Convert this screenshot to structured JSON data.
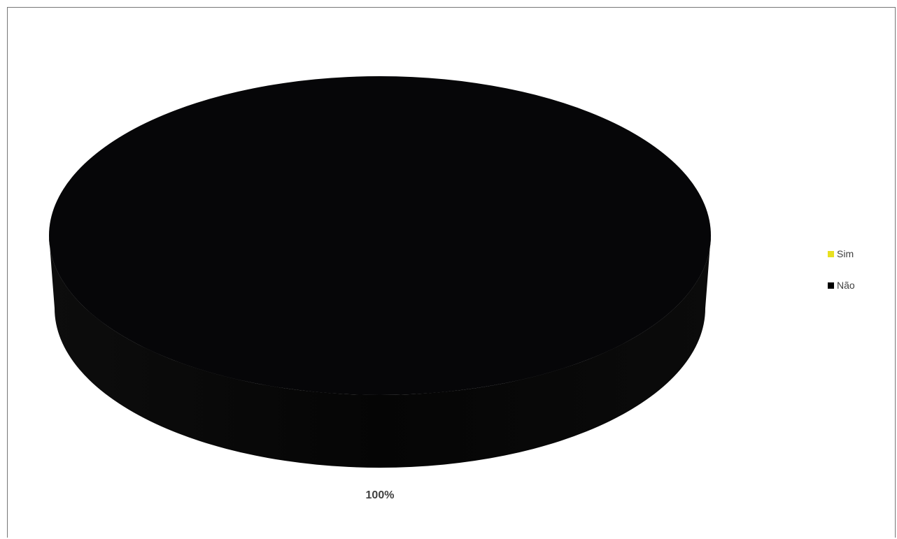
{
  "chart_data": {
    "type": "pie",
    "style": "3d",
    "categories": [
      "Sim",
      "Não"
    ],
    "values": [
      0,
      100
    ],
    "data_labels": [
      "",
      "100%"
    ],
    "colors": [
      "#e8e020",
      "#000000"
    ],
    "legend_placement": "right",
    "title": ""
  }
}
